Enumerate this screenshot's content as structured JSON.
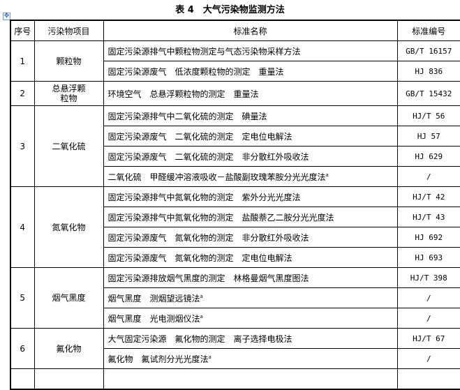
{
  "title": "表 4　大气污染物监测方法",
  "headers": [
    "序号",
    "污染物项目",
    "标准名称",
    "标准编号"
  ],
  "groups": [
    {
      "no": "1",
      "item": "颗粒物",
      "rows": [
        {
          "name": "固定污染源排气中颗粒物测定与气态污染物采样方法",
          "code": "GB/T 16157"
        },
        {
          "name": "固定污染源废气　低浓度颗粒物的测定　重量法",
          "code": "HJ 836"
        }
      ]
    },
    {
      "no": "2",
      "item": "总悬浮颗粒物",
      "rows": [
        {
          "name": "环境空气　总悬浮颗粒物的测定　重量法",
          "code": "GB/T 15432"
        }
      ]
    },
    {
      "no": "3",
      "item": "二氧化硫",
      "rows": [
        {
          "name": "固定污染源排气中二氧化硫的测定　碘量法",
          "code": "HJ/T 56"
        },
        {
          "name": "固定污染源废气　二氧化硫的测定　定电位电解法",
          "code": "HJ 57"
        },
        {
          "name": "固定污染源废气　二氧化硫的测定　非分散红外吸收法",
          "code": "HJ 629"
        },
        {
          "name": "二氧化硫　甲醛缓冲溶液吸收－盐酸副玫瑰苯胺分光光度法",
          "note": "a",
          "code": "/"
        }
      ]
    },
    {
      "no": "4",
      "item": "氮氧化物",
      "rows": [
        {
          "name": "固定污染源排气中氮氧化物的测定　紫外分光光度法",
          "code": "HJ/T 42"
        },
        {
          "name": "固定污染源排气中氮氧化物的测定　盐酸萘乙二胺分光光度法",
          "code": "HJ/T 43"
        },
        {
          "name": "固定污染源废气　氮氧化物的测定　非分散红外吸收法",
          "code": "HJ 692"
        },
        {
          "name": "固定污染源废气　氮氧化物的测定　定电位电解法",
          "code": "HJ 693"
        }
      ]
    },
    {
      "no": "5",
      "item": "烟气黑度",
      "rows": [
        {
          "name": "固定污染源排放烟气黑度的测定　林格曼烟气黑度图法",
          "code": "HJ/T 398"
        },
        {
          "name": "烟气黑度　测烟望远镜法",
          "note": "a",
          "code": "/"
        },
        {
          "name": "烟气黑度　光电测烟仪法",
          "note": "a",
          "code": "/"
        }
      ]
    },
    {
      "no": "6",
      "item": "氟化物",
      "rows": [
        {
          "name": "大气固定污染源　氟化物的测定　离子选择电极法",
          "code": "HJ/T 67"
        },
        {
          "name": "氟化物　氟试剂分光光度法",
          "note": "a",
          "code": "/"
        }
      ]
    }
  ]
}
